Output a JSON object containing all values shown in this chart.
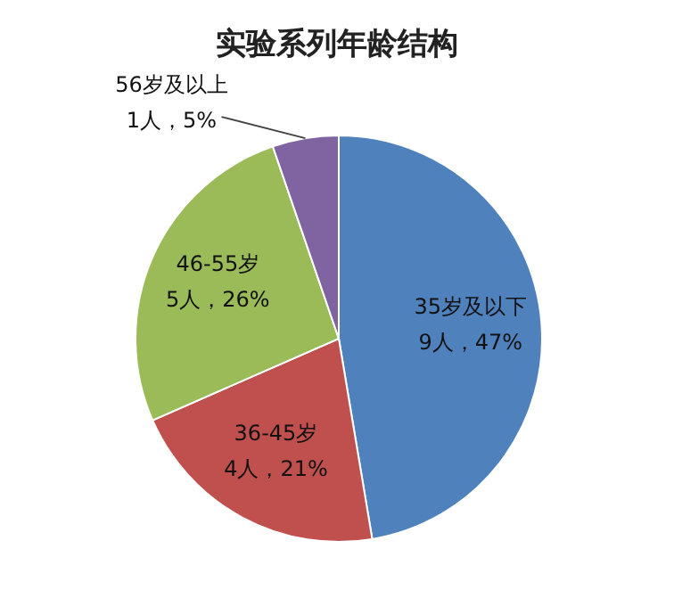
{
  "chart_data": {
    "type": "pie",
    "title": "实验系列年龄结构",
    "categories": [
      "35岁及以下",
      "36-45岁",
      "46-55岁",
      "56岁及以上"
    ],
    "values": [
      9,
      4,
      5,
      1
    ],
    "value_labels": [
      "9人，47%",
      "4人，21%",
      "5人，26%",
      "1人，5%"
    ],
    "colors": [
      "#4f81bd",
      "#c0504d",
      "#9bbb59",
      "#8064a2"
    ],
    "legend": false
  }
}
